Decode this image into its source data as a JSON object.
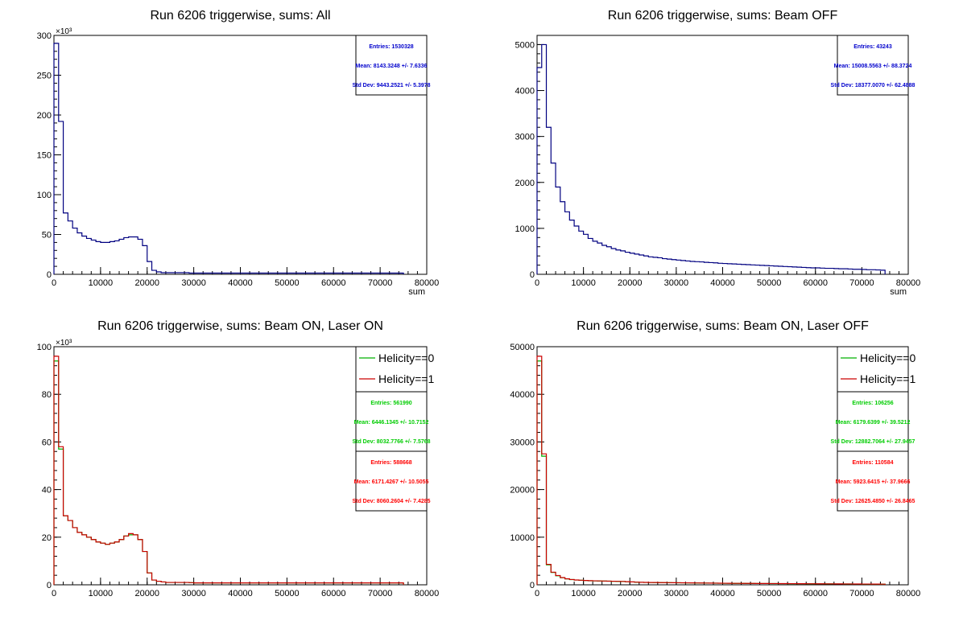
{
  "chart_data": [
    {
      "type": "histogram",
      "title": "Run 6206 triggerwise, sums: All",
      "xlabel": "sum",
      "y_multiplier": "×10³",
      "xlim": [
        0,
        80000
      ],
      "ylim": [
        0,
        300
      ],
      "x_ticks": [
        "0",
        "10000",
        "20000",
        "30000",
        "40000",
        "50000",
        "60000",
        "70000",
        "80000"
      ],
      "y_ticks": [
        "0",
        "50",
        "100",
        "150",
        "200",
        "250",
        "300"
      ],
      "legend": [],
      "stats": [
        {
          "color": "#0000cc",
          "lines": [
            "Entries: 1530328",
            "Mean: 8143.3248 +/- 7.6336",
            "Std Dev: 9443.2521 +/- 5.3978"
          ]
        }
      ],
      "series": [
        {
          "color": "#000080",
          "bin_width": 1000,
          "values": [
            290,
            192,
            77,
            67,
            58,
            52,
            48,
            45,
            43,
            41,
            40,
            40,
            41,
            42,
            44,
            46,
            47,
            47,
            44,
            36,
            16,
            5,
            3,
            2,
            2,
            2,
            2,
            2,
            2,
            1.5,
            1.5,
            1.5,
            1.5,
            1.5,
            1.5,
            1.5,
            1.5,
            1.5,
            1.5,
            1.5,
            1.5,
            1.5,
            1.5,
            1.5,
            1.5,
            1.5,
            1.5,
            1.5,
            1.5,
            1.5,
            1.5,
            1.5,
            1.5,
            1.5,
            1.5,
            1.5,
            1.5,
            1.5,
            1.5,
            1.5,
            1.5,
            1.5,
            1.5,
            1.5,
            1.5,
            1.5,
            1.5,
            1.5,
            1.5,
            1.5,
            1.5,
            1.5,
            1.5,
            1.5,
            1.5
          ]
        }
      ]
    },
    {
      "type": "histogram",
      "title": "Run 6206 triggerwise, sums: Beam OFF",
      "xlabel": "sum",
      "y_multiplier": "",
      "xlim": [
        0,
        80000
      ],
      "ylim": [
        0,
        5200
      ],
      "x_ticks": [
        "0",
        "10000",
        "20000",
        "30000",
        "40000",
        "50000",
        "60000",
        "70000",
        "80000"
      ],
      "y_ticks": [
        "0",
        "1000",
        "2000",
        "3000",
        "4000",
        "5000"
      ],
      "legend": [],
      "stats": [
        {
          "color": "#0000cc",
          "lines": [
            "Entries: 43243",
            "Mean: 15008.5563 +/- 88.3724",
            "Std Dev: 18377.0070 +/- 62.4888"
          ]
        }
      ],
      "series": [
        {
          "color": "#000080",
          "bin_width": 1000,
          "values": [
            4500,
            5000,
            3200,
            2420,
            1900,
            1580,
            1360,
            1180,
            1050,
            940,
            870,
            780,
            720,
            680,
            630,
            600,
            560,
            530,
            510,
            480,
            460,
            440,
            420,
            400,
            380,
            370,
            360,
            340,
            330,
            320,
            310,
            300,
            290,
            280,
            275,
            270,
            260,
            255,
            250,
            240,
            235,
            230,
            225,
            220,
            215,
            210,
            205,
            200,
            195,
            190,
            185,
            180,
            175,
            170,
            165,
            160,
            155,
            150,
            145,
            140,
            140,
            135,
            130,
            130,
            125,
            120,
            120,
            115,
            110,
            110,
            105,
            100,
            100,
            95,
            90
          ]
        }
      ]
    },
    {
      "type": "histogram",
      "title": "Run 6206 triggerwise, sums: Beam ON, Laser ON",
      "xlabel": "",
      "y_multiplier": "×10³",
      "xlim": [
        0,
        80000
      ],
      "ylim": [
        0,
        100
      ],
      "x_ticks": [
        "0",
        "10000",
        "20000",
        "30000",
        "40000",
        "50000",
        "60000",
        "70000",
        "80000"
      ],
      "y_ticks": [
        "0",
        "20",
        "40",
        "60",
        "80",
        "100"
      ],
      "legend": [
        "Helicity==0",
        "Helicity==1"
      ],
      "stats": [
        {
          "color": "#00cc00",
          "lines": [
            "Entries: 561990",
            "Mean: 6446.1345 +/- 10.7152",
            "Std Dev: 8032.7766 +/- 7.5768"
          ]
        },
        {
          "color": "#ff0000",
          "lines": [
            "Entries: 588668",
            "Mean: 6171.4267 +/- 10.5055",
            "Std Dev: 8060.2604 +/- 7.4285"
          ]
        }
      ],
      "series": [
        {
          "name": "Helicity==0",
          "color": "#00b000",
          "bin_width": 1000,
          "values": [
            94,
            57,
            29,
            27,
            24,
            22,
            21,
            20,
            19,
            18,
            17.5,
            17,
            17.5,
            18,
            19,
            20.5,
            21,
            21,
            19,
            14,
            5,
            2,
            1.5,
            1.2,
            1,
            1,
            1,
            1,
            1,
            0.9,
            0.8,
            0.8,
            0.8,
            0.8,
            0.8,
            0.8,
            0.8,
            0.8,
            0.8,
            0.8,
            0.8,
            0.8,
            0.8,
            0.8,
            0.8,
            0.8,
            0.8,
            0.8,
            0.8,
            0.8,
            0.8,
            0.8,
            0.8,
            0.8,
            0.8,
            0.8,
            0.8,
            0.8,
            0.8,
            0.8,
            0.8,
            0.8,
            0.8,
            0.8,
            0.8,
            0.8,
            0.8,
            0.8,
            0.8,
            0.8,
            0.8,
            0.8,
            0.8,
            0.8,
            0.8
          ]
        },
        {
          "name": "Helicity==1",
          "color": "#cc0000",
          "bin_width": 1000,
          "values": [
            96,
            58,
            29,
            27,
            24,
            22,
            21,
            20,
            19,
            18,
            17.5,
            17,
            17.5,
            18,
            19,
            20.5,
            21.5,
            21,
            19,
            14,
            5,
            2,
            1.5,
            1.2,
            1,
            1,
            1,
            1,
            1,
            0.9,
            0.8,
            0.8,
            0.8,
            0.8,
            0.8,
            0.8,
            0.8,
            0.8,
            0.8,
            0.8,
            0.8,
            0.8,
            0.8,
            0.8,
            0.8,
            0.8,
            0.8,
            0.8,
            0.8,
            0.8,
            0.8,
            0.8,
            0.8,
            0.8,
            0.8,
            0.8,
            0.8,
            0.8,
            0.8,
            0.8,
            0.8,
            0.8,
            0.8,
            0.8,
            0.8,
            0.8,
            0.8,
            0.8,
            0.8,
            0.8,
            0.8,
            0.8,
            0.8,
            0.8,
            0.8
          ]
        }
      ]
    },
    {
      "type": "histogram",
      "title": "Run 6206 triggerwise, sums: Beam ON, Laser OFF",
      "xlabel": "",
      "y_multiplier": "",
      "xlim": [
        0,
        80000
      ],
      "ylim": [
        0,
        50000
      ],
      "x_ticks": [
        "0",
        "10000",
        "20000",
        "30000",
        "40000",
        "50000",
        "60000",
        "70000",
        "80000"
      ],
      "y_ticks": [
        "0",
        "10000",
        "20000",
        "30000",
        "40000",
        "50000"
      ],
      "legend": [
        "Helicity==0",
        "Helicity==1"
      ],
      "stats": [
        {
          "color": "#00cc00",
          "lines": [
            "Entries: 106256",
            "Mean: 6179.6399 +/- 39.5212",
            "Std Dev: 12882.7064 +/- 27.9457"
          ]
        },
        {
          "color": "#ff0000",
          "lines": [
            "Entries: 110584",
            "Mean: 5923.6415 +/- 37.9666",
            "Std Dev: 12625.4850 +/- 26.8465"
          ]
        }
      ],
      "series": [
        {
          "name": "Helicity==0",
          "color": "#00b000",
          "bin_width": 1000,
          "values": [
            47000,
            27000,
            4200,
            2600,
            1900,
            1500,
            1250,
            1100,
            1000,
            950,
            900,
            850,
            820,
            800,
            780,
            760,
            740,
            720,
            700,
            650,
            600,
            550,
            520,
            500,
            480,
            470,
            460,
            450,
            440,
            430,
            420,
            410,
            400,
            390,
            380,
            370,
            360,
            350,
            340,
            330,
            320,
            310,
            300,
            300,
            290,
            280,
            280,
            270,
            260,
            260,
            250,
            250,
            240,
            240,
            230,
            230,
            220,
            220,
            210,
            210,
            200,
            200,
            190,
            190,
            180,
            180,
            170,
            170,
            160,
            160,
            150,
            150,
            140,
            140,
            130
          ]
        },
        {
          "name": "Helicity==1",
          "color": "#cc0000",
          "bin_width": 1000,
          "values": [
            48000,
            27500,
            4300,
            2650,
            1950,
            1520,
            1270,
            1110,
            1010,
            960,
            910,
            860,
            830,
            810,
            790,
            770,
            750,
            730,
            710,
            660,
            610,
            560,
            530,
            510,
            490,
            480,
            470,
            460,
            450,
            440,
            430,
            420,
            410,
            400,
            390,
            380,
            370,
            360,
            350,
            340,
            330,
            320,
            310,
            310,
            300,
            290,
            290,
            280,
            270,
            270,
            260,
            260,
            250,
            250,
            240,
            240,
            230,
            230,
            220,
            220,
            210,
            210,
            200,
            200,
            190,
            190,
            180,
            180,
            170,
            170,
            160,
            160,
            150,
            150,
            140
          ]
        }
      ]
    }
  ]
}
